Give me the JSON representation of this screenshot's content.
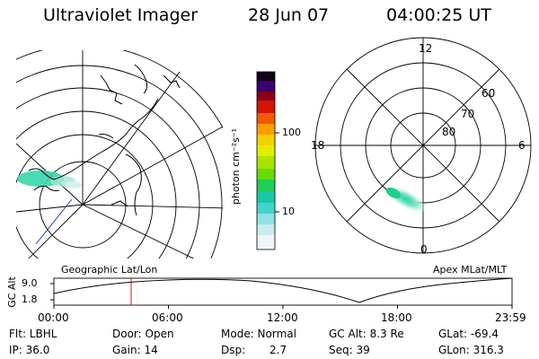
{
  "header": {
    "instrument": "Ultraviolet Imager",
    "date": "28 Jun 07",
    "time": "04:00:25 UT"
  },
  "colorbar": {
    "unit_label": "photon cm⁻²s⁻¹",
    "ticks": [
      "100",
      "10"
    ]
  },
  "geo_map": {
    "caption": "Geographic Lat/Lon"
  },
  "polar_map": {
    "caption": "Apex MLat/MLT",
    "mlt_labels": [
      "12",
      "18",
      "6",
      "0"
    ],
    "lat_labels": [
      "60",
      "70",
      "80"
    ]
  },
  "timeline": {
    "y_label": "GC Alt",
    "y_ticks": [
      "9.0",
      "1.8"
    ],
    "x_ticks": [
      "00:00",
      "06:00",
      "12:00",
      "18:00",
      "23:59"
    ]
  },
  "status": {
    "flt": "Flt: LBHL",
    "ip": "IP: 36.0",
    "door": "Door: Open",
    "gain": "Gain: 14",
    "mode": "Mode: Normal",
    "dsp_label": "Dsp:",
    "dsp_value": "2.7",
    "gc_alt": "GC Alt: 8.3 Re",
    "seq": "Seq: 39",
    "glat": "GLat: -69.4",
    "glon": "GLon: 316.3"
  }
}
